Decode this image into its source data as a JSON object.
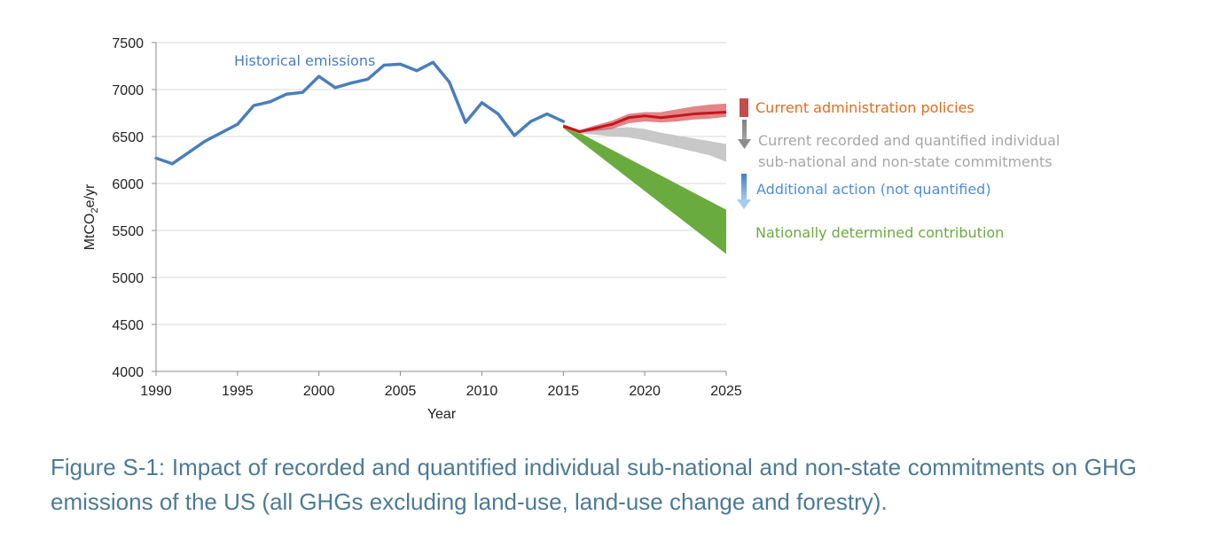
{
  "colors": {
    "historical": "#4a7ebb",
    "current_policies": "#e36c1d",
    "current_policies_band": "#cc2128",
    "commitments": "#a6a6a6",
    "commitments_band": "#c8c8c8",
    "additional_action": "#4f8fd0",
    "ndc": "#6aab3f",
    "caption": "#4d7a96",
    "grid": "#d9d9d9",
    "axis": "#8c8c8c"
  },
  "chart_data": {
    "type": "line",
    "xlabel": "Year",
    "ylabel": "MtCO",
    "ylabel_sub": "2",
    "ylabel_suffix": "e/yr",
    "xlim": [
      1990,
      2025
    ],
    "ylim": [
      4000,
      7500
    ],
    "x_ticks": [
      "1990",
      "1995",
      "2000",
      "2005",
      "2010",
      "2015",
      "2020",
      "2025"
    ],
    "y_ticks": [
      "4000",
      "4500",
      "5000",
      "5500",
      "6000",
      "6500",
      "7000",
      "7500"
    ],
    "grid": "horizontal",
    "historical": {
      "name": "Historical emissions",
      "x": [
        1990,
        1991,
        1992,
        1993,
        1994,
        1995,
        1996,
        1997,
        1998,
        1999,
        2000,
        2001,
        2002,
        2003,
        2004,
        2005,
        2006,
        2007,
        2008,
        2009,
        2010,
        2011,
        2012,
        2013,
        2014,
        2015
      ],
      "values": [
        6270,
        6210,
        6330,
        6450,
        6540,
        6630,
        6830,
        6870,
        6950,
        6970,
        7140,
        7020,
        7070,
        7110,
        7260,
        7270,
        7200,
        7290,
        7080,
        6650,
        6860,
        6740,
        6510,
        6660,
        6740,
        6660
      ]
    },
    "projections": [
      {
        "name": "Current administration policies",
        "x": [
          2015,
          2016,
          2017,
          2018,
          2019,
          2020,
          2021,
          2022,
          2023,
          2024,
          2025
        ],
        "lower": [
          6590,
          6540,
          6560,
          6580,
          6640,
          6660,
          6650,
          6660,
          6680,
          6690,
          6710
        ],
        "upper": [
          6630,
          6570,
          6620,
          6670,
          6740,
          6760,
          6760,
          6790,
          6820,
          6840,
          6850
        ],
        "central": [
          6610,
          6550,
          6590,
          6630,
          6700,
          6720,
          6700,
          6720,
          6740,
          6750,
          6760
        ]
      },
      {
        "name": "Current recorded and quantified individual sub-national and non-state commitments",
        "name_lines": [
          "Current recorded and quantified individual",
          "sub-national and non-state commitments"
        ],
        "x": [
          2015,
          2016,
          2017,
          2018,
          2019,
          2020,
          2021,
          2022,
          2023,
          2024,
          2025
        ],
        "lower": [
          6590,
          6530,
          6520,
          6500,
          6490,
          6460,
          6420,
          6380,
          6340,
          6300,
          6230
        ],
        "upper": [
          6630,
          6570,
          6580,
          6590,
          6600,
          6580,
          6540,
          6510,
          6480,
          6450,
          6420
        ]
      },
      {
        "name": "Nationally determined contribution",
        "x": [
          2015,
          2025
        ],
        "lower": [
          6590,
          5250
        ],
        "upper": [
          6630,
          5720
        ]
      }
    ],
    "annotations": {
      "historical_label": "Historical emissions",
      "current_policies_label": "Current administration policies",
      "commitments_label_lines": [
        "Current recorded and quantified individual",
        "sub-national and non-state commitments"
      ],
      "additional_action_label": "Additional action (not quantified)",
      "ndc_label": "Nationally determined contribution"
    }
  },
  "caption": "Figure S-1: Impact of recorded and quantified individual sub-national and non-state commitments on GHG emissions of the US (all GHGs excluding land-use, land-use change and forestry)."
}
